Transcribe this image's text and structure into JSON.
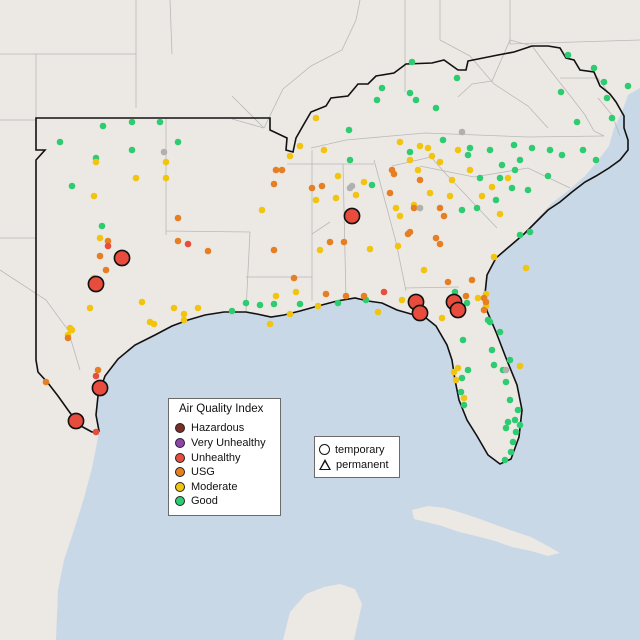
{
  "colors": {
    "water": "#c9d8e6",
    "land": "#ece8e4",
    "state_border": "#b9b9b9",
    "region_border": "#111111",
    "hazardous": "#7b2d26",
    "very_unhealthy": "#8e44ad",
    "unhealthy": "#e74c3c",
    "usg": "#e67e22",
    "moderate": "#f1c40f",
    "good": "#2ecc71",
    "missing": "#b0b0b0"
  },
  "legend": {
    "title": "Air Quality Index",
    "items": [
      {
        "label": "Hazardous",
        "level": "hazardous"
      },
      {
        "label": "Very Unhealthy",
        "level": "very_unhealthy"
      },
      {
        "label": "Unhealthy",
        "level": "unhealthy"
      },
      {
        "label": "USG",
        "level": "usg"
      },
      {
        "label": "Moderate",
        "level": "moderate"
      },
      {
        "label": "Good",
        "level": "good"
      }
    ]
  },
  "monitor_types": [
    {
      "label": "temporary",
      "shape": "circle"
    },
    {
      "label": "permanent",
      "shape": "triangle"
    }
  ]
}
